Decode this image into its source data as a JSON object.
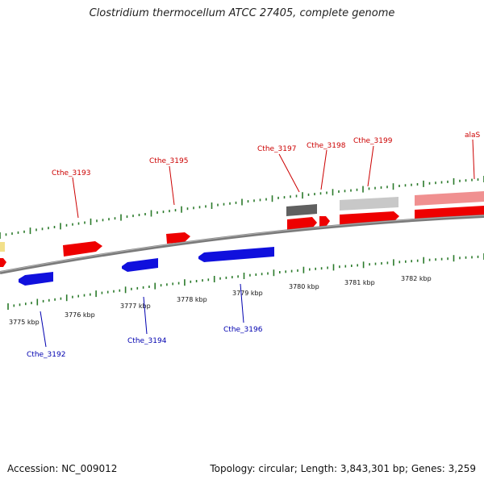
{
  "title": "Clostridium thermocellum ATCC 27405, complete genome",
  "footer": {
    "accession": "Accession: NC_009012",
    "summary": "Topology: circular; Length: 3,843,301 bp; Genes: 3,259"
  },
  "colors": {
    "forward_cds": "#ee0000",
    "reverse_cds": "#1010dd",
    "gene_track": "#606060",
    "backbone": "#7a7a7a",
    "tick": "#2a7a2a",
    "label_forward": "#cc0000",
    "label_reverse": "#0000b0",
    "trna": "#f2e08a"
  },
  "scale_labels": [
    "3775 kbp",
    "3776 kbp",
    "3777 kbp",
    "3778 kbp",
    "3779 kbp",
    "3780 kbp",
    "3781 kbp",
    "3782 kbp"
  ],
  "forward_labels": [
    "Cthe_3193",
    "Cthe_3195",
    "Cthe_3197",
    "Cthe_3198",
    "Cthe_3199",
    "alaS"
  ],
  "reverse_labels": [
    "Cthe_3192",
    "Cthe_3194",
    "Cthe_3196"
  ]
}
